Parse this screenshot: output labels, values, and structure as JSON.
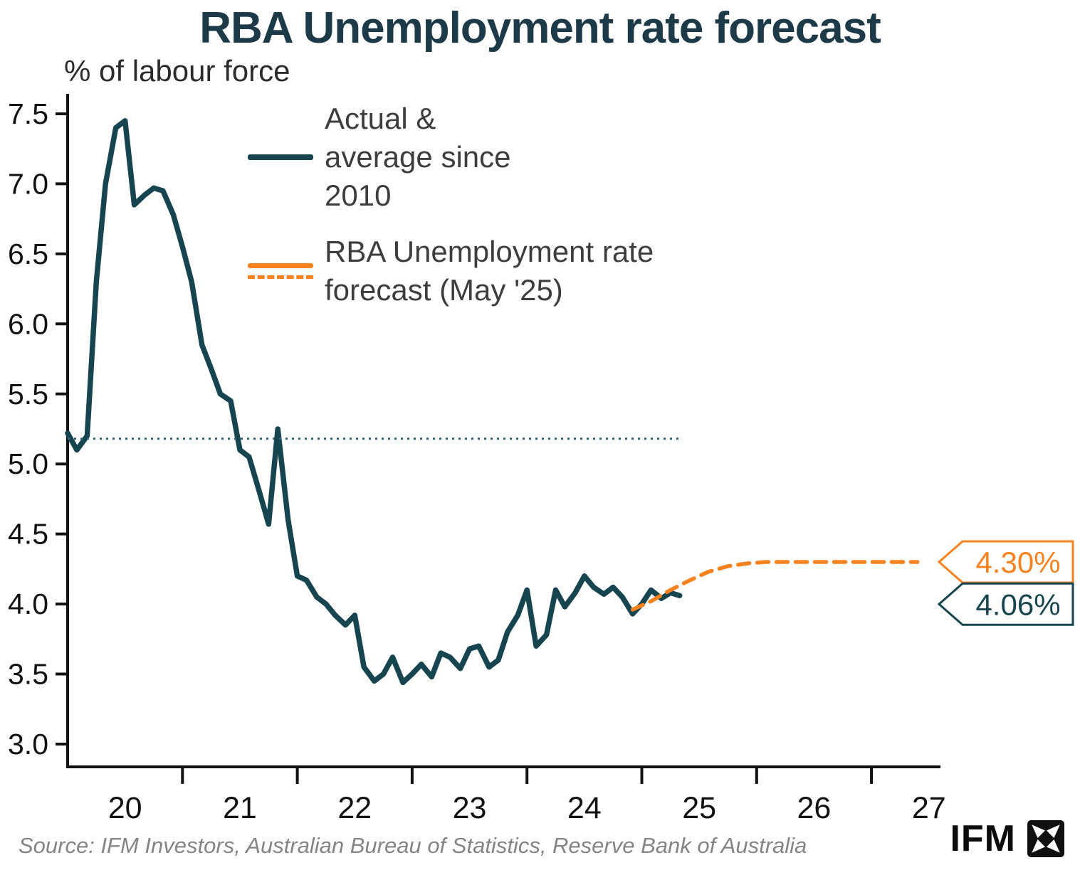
{
  "header": {
    "title": "RBA Unemployment rate forecast",
    "y_axis_caption": "% of labour force"
  },
  "legend": {
    "items": [
      {
        "id": "actual",
        "lines": [
          "Actual &",
          "average since",
          "2010"
        ]
      },
      {
        "id": "forecast",
        "lines": [
          "RBA Unemployment rate",
          "forecast (May '25)"
        ]
      }
    ]
  },
  "chart_data": {
    "type": "line",
    "title": "RBA Unemployment rate forecast",
    "ylabel": "% of labour force",
    "ylim": [
      3.0,
      7.5
    ],
    "xlim": [
      2020.0,
      2027.6
    ],
    "grid": false,
    "legend_position": "inside-top-left",
    "y_ticks": [
      3.0,
      3.5,
      4.0,
      4.5,
      5.0,
      5.5,
      6.0,
      6.5,
      7.0,
      7.5
    ],
    "x_axis": {
      "tick_years": [
        2021,
        2022,
        2023,
        2024,
        2025,
        2026,
        2027
      ],
      "labels": [
        {
          "text": "20",
          "x": 2020.5
        },
        {
          "text": "21",
          "x": 2021.5
        },
        {
          "text": "22",
          "x": 2022.5
        },
        {
          "text": "23",
          "x": 2023.5
        },
        {
          "text": "24",
          "x": 2024.5
        },
        {
          "text": "25",
          "x": 2025.5
        },
        {
          "text": "26",
          "x": 2026.5
        },
        {
          "text": "27",
          "x": 2027.5
        }
      ]
    },
    "series": [
      {
        "id": "actual",
        "name": "Actual unemployment rate",
        "color": "#16454f",
        "style": "solid",
        "width": 7.5,
        "points": [
          [
            2020.0,
            5.22
          ],
          [
            2020.08,
            5.1
          ],
          [
            2020.17,
            5.2
          ],
          [
            2020.25,
            6.3
          ],
          [
            2020.33,
            7.0
          ],
          [
            2020.42,
            7.4
          ],
          [
            2020.5,
            7.45
          ],
          [
            2020.58,
            6.85
          ],
          [
            2020.67,
            6.92
          ],
          [
            2020.75,
            6.97
          ],
          [
            2020.83,
            6.95
          ],
          [
            2020.92,
            6.78
          ],
          [
            2021.0,
            6.55
          ],
          [
            2021.08,
            6.3
          ],
          [
            2021.17,
            5.85
          ],
          [
            2021.25,
            5.68
          ],
          [
            2021.33,
            5.5
          ],
          [
            2021.42,
            5.45
          ],
          [
            2021.5,
            5.1
          ],
          [
            2021.58,
            5.05
          ],
          [
            2021.67,
            4.8
          ],
          [
            2021.75,
            4.57
          ],
          [
            2021.83,
            5.25
          ],
          [
            2021.92,
            4.6
          ],
          [
            2022.0,
            4.2
          ],
          [
            2022.08,
            4.17
          ],
          [
            2022.17,
            4.05
          ],
          [
            2022.25,
            4.0
          ],
          [
            2022.33,
            3.92
          ],
          [
            2022.42,
            3.85
          ],
          [
            2022.5,
            3.92
          ],
          [
            2022.58,
            3.55
          ],
          [
            2022.67,
            3.45
          ],
          [
            2022.75,
            3.5
          ],
          [
            2022.83,
            3.62
          ],
          [
            2022.92,
            3.44
          ],
          [
            2023.0,
            3.5
          ],
          [
            2023.08,
            3.57
          ],
          [
            2023.17,
            3.48
          ],
          [
            2023.25,
            3.65
          ],
          [
            2023.33,
            3.62
          ],
          [
            2023.42,
            3.54
          ],
          [
            2023.5,
            3.68
          ],
          [
            2023.58,
            3.7
          ],
          [
            2023.67,
            3.55
          ],
          [
            2023.75,
            3.6
          ],
          [
            2023.83,
            3.8
          ],
          [
            2023.92,
            3.92
          ],
          [
            2024.0,
            4.1
          ],
          [
            2024.08,
            3.7
          ],
          [
            2024.17,
            3.78
          ],
          [
            2024.25,
            4.1
          ],
          [
            2024.33,
            3.98
          ],
          [
            2024.42,
            4.08
          ],
          [
            2024.5,
            4.2
          ],
          [
            2024.58,
            4.12
          ],
          [
            2024.67,
            4.07
          ],
          [
            2024.75,
            4.12
          ],
          [
            2024.83,
            4.05
          ],
          [
            2024.92,
            3.93
          ],
          [
            2025.0,
            4.0
          ],
          [
            2025.08,
            4.1
          ],
          [
            2025.17,
            4.04
          ],
          [
            2025.25,
            4.08
          ],
          [
            2025.33,
            4.06
          ]
        ]
      },
      {
        "id": "average-since-2010",
        "name": "Average since 2010",
        "color": "#31627e",
        "style": "dotted",
        "width": 3,
        "points": [
          [
            2020.0,
            5.18
          ],
          [
            2025.35,
            5.18
          ]
        ]
      },
      {
        "id": "rba-forecast",
        "name": "RBA Unemployment rate forecast (May '25)",
        "color": "#f5821f",
        "style": "dashed",
        "width": 5.5,
        "points": [
          [
            2024.92,
            3.96
          ],
          [
            2025.08,
            4.02
          ],
          [
            2025.25,
            4.1
          ],
          [
            2025.42,
            4.17
          ],
          [
            2025.58,
            4.23
          ],
          [
            2025.75,
            4.27
          ],
          [
            2025.92,
            4.29
          ],
          [
            2026.08,
            4.3
          ],
          [
            2026.5,
            4.3
          ],
          [
            2027.0,
            4.3
          ],
          [
            2027.4,
            4.3
          ]
        ]
      }
    ],
    "annotations": [
      {
        "text": "4.30%",
        "value": 4.3,
        "color": "#f5821f",
        "series": "rba-forecast"
      },
      {
        "text": "4.06%",
        "value": 4.06,
        "color": "#16454f",
        "series": "actual"
      }
    ]
  },
  "footer": {
    "source": "Source: IFM Investors, Australian Bureau of Statistics, Reserve Bank of Australia",
    "brand": "IFM"
  }
}
